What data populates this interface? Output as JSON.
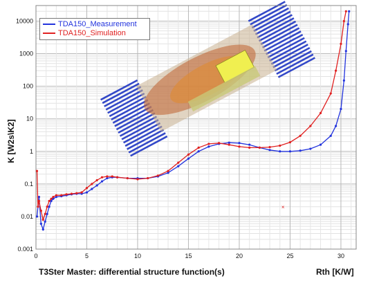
{
  "footer": {
    "title": "T3Ster Master: differential structure function(s)",
    "xunit": "Rth [K/W]"
  },
  "legend": [
    {
      "name": "TDA150_Measurement",
      "color": "#2233dd"
    },
    {
      "name": "TDA150_Simulation",
      "color": "#e02020"
    }
  ],
  "chart_data": {
    "type": "line",
    "ylabel": "K [W2s\\K2]",
    "xlabel": "Rth [K/W]",
    "xlim": [
      0,
      31.5
    ],
    "ylim": [
      0.001,
      30000
    ],
    "yscale": "log",
    "grid": true,
    "legend_position": "top-left",
    "xticks": [
      "0",
      "5",
      "10",
      "15",
      "20",
      "25",
      "30"
    ],
    "yticks": [
      "0.001",
      "0.01",
      "0.1",
      "1",
      "10",
      "100",
      "1000",
      "10000"
    ],
    "series": [
      {
        "name": "TDA150_Measurement",
        "color": "#2233dd",
        "x": [
          0.1,
          0.3,
          0.5,
          0.7,
          0.9,
          1.1,
          1.3,
          1.5,
          1.7,
          2.0,
          2.5,
          3.0,
          3.5,
          4.0,
          4.5,
          5.0,
          5.5,
          6.0,
          6.5,
          7.0,
          7.5,
          8.0,
          9.0,
          10.0,
          11.0,
          12.0,
          13.0,
          14.0,
          15.0,
          16.0,
          17.0,
          18.0,
          19.0,
          20.0,
          21.0,
          22.0,
          23.0,
          24.0,
          25.0,
          26.0,
          27.0,
          28.0,
          29.0,
          29.5,
          30.0,
          30.3,
          30.5,
          30.7,
          30.8
        ],
        "y": [
          0.01,
          0.04,
          0.006,
          0.004,
          0.007,
          0.012,
          0.02,
          0.03,
          0.035,
          0.04,
          0.042,
          0.045,
          0.048,
          0.05,
          0.05,
          0.055,
          0.07,
          0.09,
          0.12,
          0.15,
          0.16,
          0.16,
          0.15,
          0.15,
          0.15,
          0.17,
          0.22,
          0.35,
          0.6,
          1.0,
          1.4,
          1.7,
          1.85,
          1.8,
          1.6,
          1.3,
          1.1,
          1.0,
          1.0,
          1.05,
          1.2,
          1.6,
          3,
          6,
          20,
          150,
          1200,
          8000,
          20000
        ]
      },
      {
        "name": "TDA150_Simulation",
        "color": "#e02020",
        "x": [
          0.1,
          0.2,
          0.3,
          0.5,
          0.7,
          0.9,
          1.1,
          1.3,
          1.5,
          1.7,
          2.0,
          2.5,
          3.0,
          3.5,
          4.0,
          4.5,
          5.0,
          5.5,
          6.0,
          6.5,
          7.0,
          7.5,
          8.0,
          9.0,
          10.0,
          11.0,
          12.0,
          13.0,
          14.0,
          15.0,
          16.0,
          17.0,
          18.0,
          19.0,
          20.0,
          21.0,
          22.0,
          23.0,
          24.0,
          25.0,
          26.0,
          27.0,
          28.0,
          29.0,
          29.5,
          30.0,
          30.3,
          30.5
        ],
        "y": [
          0.25,
          0.02,
          0.03,
          0.015,
          0.008,
          0.012,
          0.02,
          0.03,
          0.035,
          0.04,
          0.045,
          0.045,
          0.048,
          0.05,
          0.052,
          0.055,
          0.075,
          0.1,
          0.13,
          0.16,
          0.17,
          0.17,
          0.16,
          0.15,
          0.14,
          0.15,
          0.18,
          0.25,
          0.45,
          0.8,
          1.3,
          1.7,
          1.8,
          1.6,
          1.4,
          1.3,
          1.3,
          1.35,
          1.5,
          1.9,
          3,
          6,
          15,
          60,
          300,
          2000,
          10000,
          20000
        ]
      }
    ]
  }
}
